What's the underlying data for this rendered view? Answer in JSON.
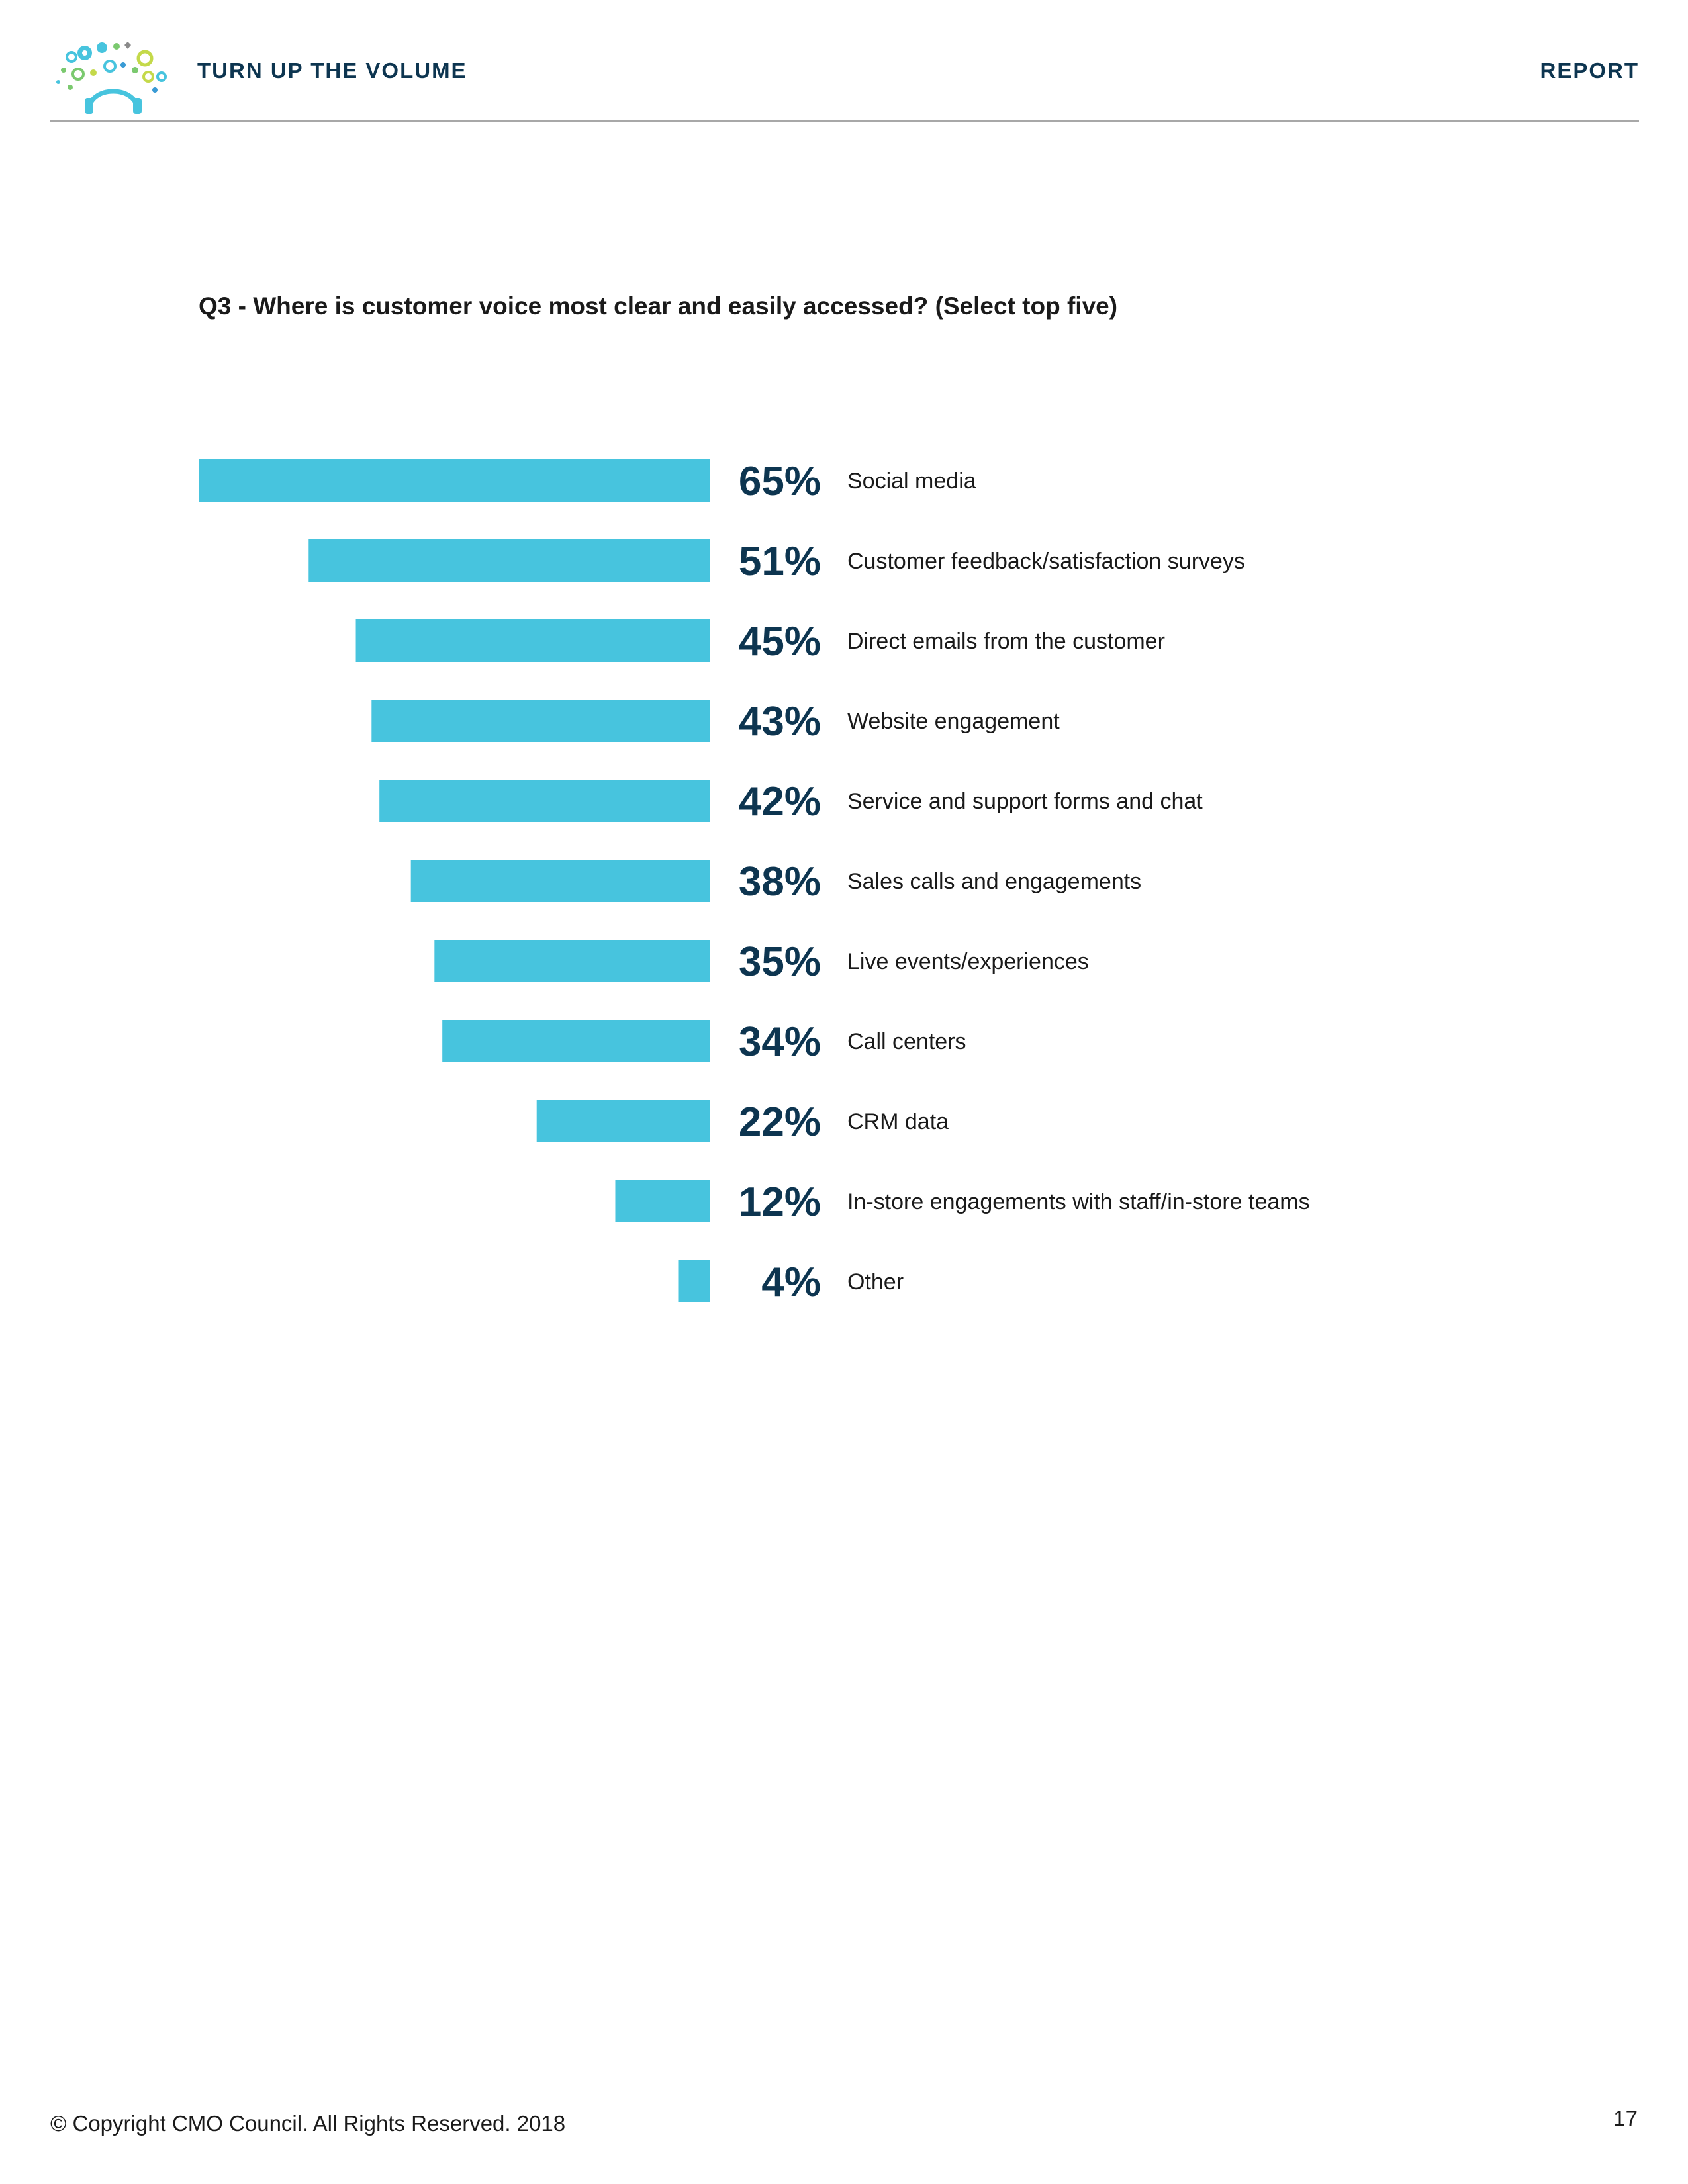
{
  "header": {
    "title": "TURN UP THE VOLUME",
    "section": "REPORT"
  },
  "logo": {
    "icon": "headphones-bubbles-logo",
    "colors": [
      "#47c4de",
      "#7bc96f",
      "#c4d94a",
      "#3a9bd5",
      "#8a8a8a"
    ]
  },
  "question": "Q3 - Where is customer voice most clear and easily accessed? (Select top five)",
  "chart_data": {
    "type": "bar",
    "orientation": "horizontal",
    "title": "Q3 - Where is customer voice most clear and easily accessed? (Select top five)",
    "xlabel": "",
    "ylabel": "",
    "unit": "%",
    "xlim": [
      0,
      65
    ],
    "grid": false,
    "bar_color": "#47c4de",
    "value_color": "#0d3550",
    "categories": [
      "Social media",
      "Customer feedback/satisfaction surveys",
      "Direct emails from the customer",
      "Website engagement",
      "Service and support forms and chat",
      "Sales calls and engagements",
      "Live events/experiences",
      "Call centers",
      "CRM data",
      "In-store engagements with staff/in-store teams",
      "Other"
    ],
    "values": [
      65,
      51,
      45,
      43,
      42,
      38,
      35,
      34,
      22,
      12,
      4
    ],
    "value_labels": [
      "65%",
      "51%",
      "45%",
      "43%",
      "42%",
      "38%",
      "35%",
      "34%",
      "22%",
      "12%",
      "4%"
    ]
  },
  "footer": {
    "copyright": "© Copyright CMO Council. All Rights Reserved. 2018",
    "page_number": "17"
  }
}
